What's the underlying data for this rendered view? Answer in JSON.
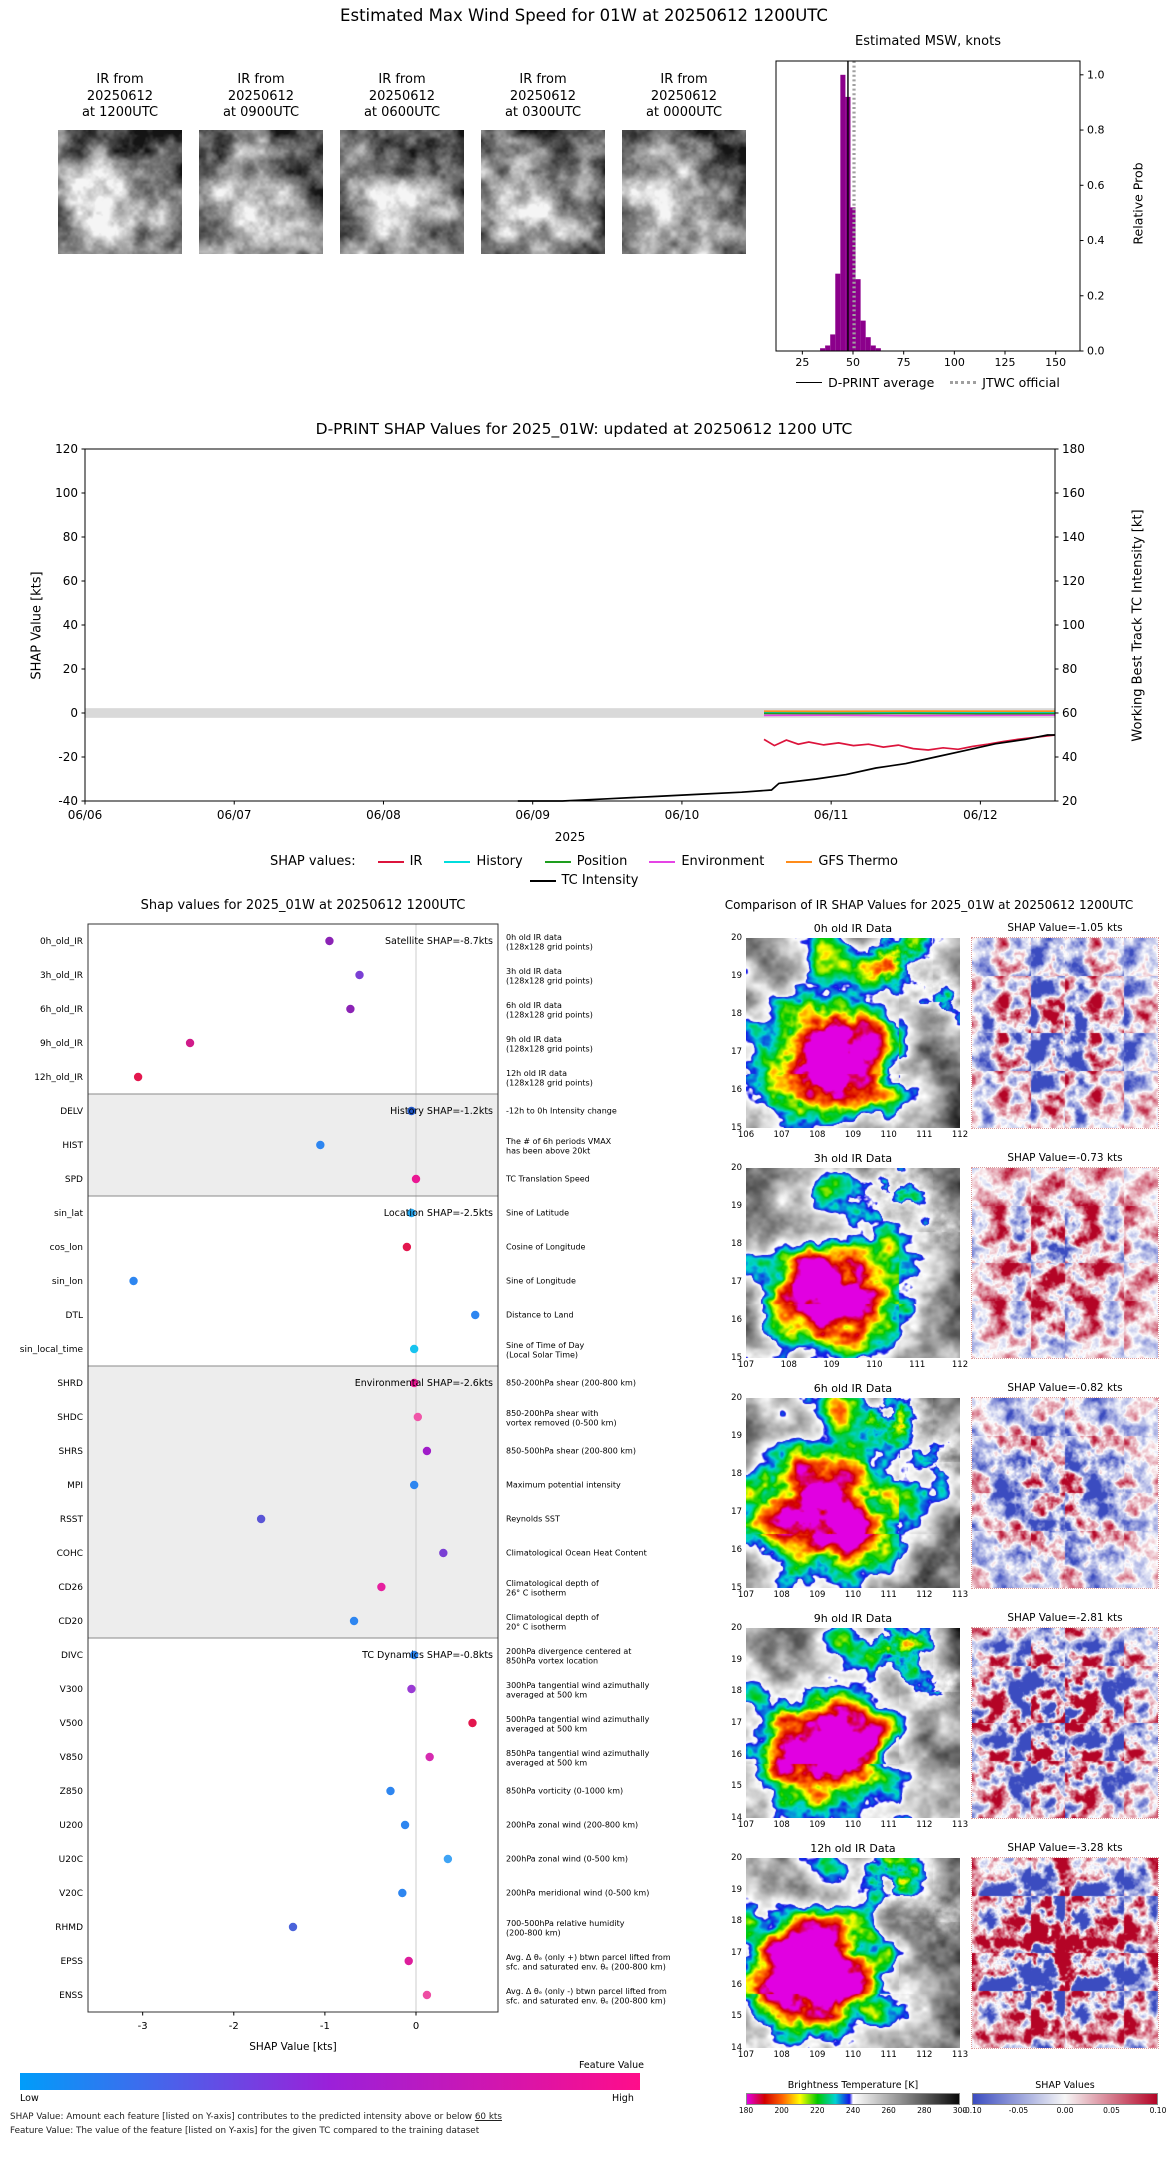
{
  "top": {
    "title": "Estimated Max Wind Speed for 01W at 20250612 1200UTC",
    "thumbnails": [
      {
        "lines": [
          "IR from",
          "20250612",
          "at 1200UTC"
        ]
      },
      {
        "lines": [
          "IR from",
          "20250612",
          "at 0900UTC"
        ]
      },
      {
        "lines": [
          "IR from",
          "20250612",
          "at 0600UTC"
        ]
      },
      {
        "lines": [
          "IR from",
          "20250612",
          "at 0300UTC"
        ]
      },
      {
        "lines": [
          "IR from",
          "20250612",
          "at 0000UTC"
        ]
      }
    ]
  },
  "chart_data": [
    {
      "id": "msw_histogram",
      "type": "bar",
      "title": "Estimated MSW, knots",
      "ylabel": "Relative Prob",
      "xlim": [
        12,
        162
      ],
      "ylim": [
        0,
        1.05
      ],
      "xticks": [
        25,
        50,
        75,
        100,
        125,
        150
      ],
      "yticks": [
        0.0,
        0.2,
        0.4,
        0.6,
        0.8,
        1.0
      ],
      "bar_color": "#8b008b",
      "bin_width": 2.5,
      "bin_centers": [
        35,
        37.5,
        40,
        42.5,
        45,
        47.5,
        50,
        52.5,
        55,
        57.5,
        60,
        62.5
      ],
      "bin_heights": [
        0.01,
        0.02,
        0.06,
        0.28,
        1.0,
        0.92,
        0.52,
        0.26,
        0.11,
        0.05,
        0.02,
        0.01
      ],
      "dprint_average_knots": 47.5,
      "jtwc_official_knots": 50.5,
      "legend": [
        {
          "label": "D-PRINT average",
          "style": "solid",
          "color": "#000000"
        },
        {
          "label": "JTWC official",
          "style": "dashed",
          "color": "#a0a0a0"
        }
      ]
    },
    {
      "id": "shap_timeseries",
      "type": "line",
      "title": "D-PRINT SHAP Values for 2025_01W: updated at 20250612 1200 UTC",
      "ylabel_left": "SHAP Value [kts]",
      "ylabel_right": "Working Best Track TC Intensity [kt]",
      "xlabel": "2025",
      "legend_prefix": "SHAP values:",
      "ylim_left": [
        -40,
        120
      ],
      "ylim_right": [
        20,
        180
      ],
      "yticks_left": [
        -40,
        -20,
        0,
        20,
        40,
        60,
        80,
        100,
        120
      ],
      "yticks_right": [
        20,
        40,
        60,
        80,
        100,
        120,
        140,
        160,
        180
      ],
      "xlim_days": [
        0,
        6.5
      ],
      "xticks": [
        {
          "day": 0,
          "label": "06/06"
        },
        {
          "day": 1,
          "label": "06/07"
        },
        {
          "day": 2,
          "label": "06/08"
        },
        {
          "day": 3,
          "label": "06/09"
        },
        {
          "day": 4,
          "label": "06/10"
        },
        {
          "day": 5,
          "label": "06/11"
        },
        {
          "day": 6,
          "label": "06/12"
        }
      ],
      "zero_band": {
        "color": "#d9d9d9",
        "halfwidth": 2.2
      },
      "series": [
        {
          "name": "IR",
          "color": "#dc143c",
          "axis": "left",
          "x": [
            4.55,
            4.62,
            4.7,
            4.78,
            4.85,
            4.95,
            5.05,
            5.15,
            5.25,
            5.35,
            5.45,
            5.55,
            5.65,
            5.75,
            5.85,
            5.95,
            6.05,
            6.15,
            6.25,
            6.35,
            6.45,
            6.5
          ],
          "y": [
            -12.0,
            -14.8,
            -12.3,
            -14.2,
            -13.2,
            -14.5,
            -13.6,
            -14.8,
            -14.2,
            -15.5,
            -14.6,
            -16.2,
            -16.8,
            -15.8,
            -16.5,
            -15.2,
            -14.2,
            -13.0,
            -12.0,
            -11.2,
            -10.4,
            -10.0
          ]
        },
        {
          "name": "History",
          "color": "#00dddd",
          "axis": "left",
          "x": [
            4.55,
            5.0,
            5.5,
            6.0,
            6.5
          ],
          "y": [
            0.3,
            0.2,
            0.3,
            0.25,
            0.3
          ]
        },
        {
          "name": "Position",
          "color": "#1e9e1e",
          "axis": "left",
          "x": [
            4.55,
            5.0,
            5.5,
            6.0,
            6.5
          ],
          "y": [
            -0.2,
            -0.25,
            -0.2,
            -0.3,
            -0.25
          ]
        },
        {
          "name": "Environment",
          "color": "#e544e5",
          "axis": "left",
          "x": [
            4.55,
            5.0,
            5.5,
            6.0,
            6.5
          ],
          "y": [
            -1.1,
            -1.0,
            -1.2,
            -1.1,
            -1.0
          ]
        },
        {
          "name": "GFS Thermo",
          "color": "#ff8c1a",
          "axis": "left",
          "x": [
            4.55,
            5.0,
            5.5,
            6.0,
            6.5
          ],
          "y": [
            0.8,
            0.75,
            0.85,
            0.8,
            0.8
          ]
        },
        {
          "name": "TC Intensity",
          "color": "#000000",
          "axis": "right",
          "x": [
            2.9,
            3.2,
            3.5,
            3.8,
            4.1,
            4.4,
            4.6,
            4.65,
            4.9,
            5.1,
            5.3,
            5.5,
            5.7,
            5.9,
            6.1,
            6.3,
            6.45,
            6.5
          ],
          "y": [
            20,
            20,
            21,
            22,
            23,
            24,
            25,
            28,
            30,
            32,
            35,
            37,
            40,
            43,
            46,
            48,
            50,
            50
          ]
        }
      ]
    },
    {
      "id": "shap_dotplot",
      "type": "scatter",
      "title": "Shap values for 2025_01W at 20250612 1200UTC",
      "xlabel": "SHAP Value [kts]",
      "xlim": [
        -3.6,
        0.9
      ],
      "xticks": [
        -3,
        -2,
        -1,
        0
      ],
      "groups": [
        {
          "label": "Satellite SHAP=-8.7kts",
          "start": 0,
          "end": 4
        },
        {
          "label": "History SHAP=-1.2kts",
          "start": 5,
          "end": 7
        },
        {
          "label": "Location SHAP=-2.5kts",
          "start": 8,
          "end": 12
        },
        {
          "label": "Environmental SHAP=-2.6kts",
          "start": 13,
          "end": 20
        },
        {
          "label": "TC Dynamics SHAP=-0.8kts",
          "start": 21,
          "end": 31
        }
      ],
      "features": [
        {
          "name": "0h_old_IR",
          "value": -0.95,
          "color": "#8b23b5",
          "desc": [
            "0h old IR data",
            "(128x128 grid points)"
          ]
        },
        {
          "name": "3h_old_IR",
          "value": -0.62,
          "color": "#7a3fd4",
          "desc": [
            "3h old IR data",
            "(128x128 grid points)"
          ]
        },
        {
          "name": "6h_old_IR",
          "value": -0.72,
          "color": "#8b23b5",
          "desc": [
            "6h old IR data",
            "(128x128 grid points)"
          ]
        },
        {
          "name": "9h_old_IR",
          "value": -2.48,
          "color": "#d01b8a",
          "desc": [
            "9h old IR data",
            "(128x128 grid points)"
          ]
        },
        {
          "name": "12h_old_IR",
          "value": -3.05,
          "color": "#e3174e",
          "desc": [
            "12h old IR data",
            "(128x128 grid points)"
          ]
        },
        {
          "name": "DELV",
          "value": -0.05,
          "color": "#2057c7",
          "desc": [
            "-12h to 0h Intensity change"
          ]
        },
        {
          "name": "HIST",
          "value": -1.05,
          "color": "#2e86f0",
          "desc": [
            "The # of 6h periods VMAX",
            "has been above 20kt"
          ]
        },
        {
          "name": "SPD",
          "value": 0.0,
          "color": "#ea1893",
          "desc": [
            "TC Translation Speed"
          ]
        },
        {
          "name": "sin_lat",
          "value": -0.05,
          "color": "#28a9f2",
          "desc": [
            "Sine of Latitude"
          ]
        },
        {
          "name": "cos_lon",
          "value": -0.1,
          "color": "#e3174e",
          "desc": [
            "Cosine of Longitude"
          ]
        },
        {
          "name": "sin_lon",
          "value": -3.1,
          "color": "#2e86f0",
          "desc": [
            "Sine of Longitude"
          ]
        },
        {
          "name": "DTL",
          "value": 0.65,
          "color": "#2e86f0",
          "desc": [
            "Distance to Land"
          ]
        },
        {
          "name": "sin_local_time",
          "value": -0.02,
          "color": "#17c3ef",
          "desc": [
            "Sine of Time of Day",
            "(Local Solar Time)"
          ]
        },
        {
          "name": "SHRD",
          "value": -0.02,
          "color": "#ea1893",
          "desc": [
            "850-200hPa shear (200-800 km)"
          ]
        },
        {
          "name": "SHDC",
          "value": 0.02,
          "color": "#ef56a8",
          "desc": [
            "850-200hPa shear with",
            "vortex removed (0-500 km)"
          ]
        },
        {
          "name": "SHRS",
          "value": 0.12,
          "color": "#a01cc9",
          "desc": [
            "850-500hPa shear (200-800 km)"
          ]
        },
        {
          "name": "MPI",
          "value": -0.02,
          "color": "#2e86f0",
          "desc": [
            "Maximum potential intensity"
          ]
        },
        {
          "name": "RSST",
          "value": -1.7,
          "color": "#5a55d6",
          "desc": [
            "Reynolds SST"
          ]
        },
        {
          "name": "COHC",
          "value": 0.3,
          "color": "#7a3fd4",
          "desc": [
            "Climatological Ocean Heat Content"
          ]
        },
        {
          "name": "CD26",
          "value": -0.38,
          "color": "#e6219f",
          "desc": [
            "Climatological depth of",
            "26° C isotherm"
          ]
        },
        {
          "name": "CD20",
          "value": -0.68,
          "color": "#2e86f0",
          "desc": [
            "Climatological depth of",
            "20° C isotherm"
          ]
        },
        {
          "name": "DIVC",
          "value": -0.02,
          "color": "#2e86f0",
          "desc": [
            "200hPa divergence centered at",
            "850hPa vortex location"
          ]
        },
        {
          "name": "V300",
          "value": -0.05,
          "color": "#9a3bd4",
          "desc": [
            "300hPa tangential wind azimuthally",
            "averaged at 500 km"
          ]
        },
        {
          "name": "V500",
          "value": 0.62,
          "color": "#e3174e",
          "desc": [
            "500hPa tangential wind azimuthally",
            "averaged at 500 km"
          ]
        },
        {
          "name": "V850",
          "value": 0.15,
          "color": "#d62bb0",
          "desc": [
            "850hPa tangential wind azimuthally",
            "averaged at 500 km"
          ]
        },
        {
          "name": "Z850",
          "value": -0.28,
          "color": "#2e86f0",
          "desc": [
            "850hPa vorticity (0-1000 km)"
          ]
        },
        {
          "name": "U200",
          "value": -0.12,
          "color": "#2e86f0",
          "desc": [
            "200hPa zonal wind (200-800 km)"
          ]
        },
        {
          "name": "U20C",
          "value": 0.35,
          "color": "#3fa4f5",
          "desc": [
            "200hPa zonal wind (0-500 km)"
          ]
        },
        {
          "name": "V20C",
          "value": -0.15,
          "color": "#2e86f0",
          "desc": [
            "200hPa meridional wind (0-500 km)"
          ]
        },
        {
          "name": "RHMD",
          "value": -1.35,
          "color": "#4a63da",
          "desc": [
            "700-500hPa relative humidity",
            "(200-800 km)"
          ]
        },
        {
          "name": "EPSS",
          "value": -0.08,
          "color": "#dd1e9c",
          "desc": [
            "Avg. Δ θₑ (only +) btwn parcel lifted from",
            "sfc. and saturated env. θₑ (200-800 km)"
          ]
        },
        {
          "name": "ENSS",
          "value": 0.12,
          "color": "#ee4da3",
          "desc": [
            "Avg. Δ θₑ (only -) btwn parcel lifted from",
            "sfc. and saturated env. θₑ (200-800 km)"
          ]
        }
      ],
      "colorbar": {
        "label": "Feature Value",
        "low": "Low",
        "high": "High",
        "stops": [
          {
            "pos": 0,
            "color": "#009dfa"
          },
          {
            "pos": 0.5,
            "color": "#9b20d9"
          },
          {
            "pos": 1,
            "color": "#ff0d8a"
          }
        ]
      },
      "footnote1_prefix": "SHAP Value: Amount each feature [listed on Y-axis] contributes to the predicted intensity above or below ",
      "footnote1_underlined": "60 kts",
      "footnote2": "Feature Value: The value of the feature [listed on Y-axis] for the given TC compared to the training dataset"
    },
    {
      "id": "ir_shap_comparison",
      "type": "heatmap",
      "title": "Comparison of IR SHAP Values for 2025_01W at 20250612 1200UTC",
      "rows": [
        {
          "ir_title": "0h old IR Data",
          "shap_label": "SHAP Value=-1.05 kts",
          "lon_ticks": [
            106,
            107,
            108,
            109,
            110,
            111,
            112
          ],
          "lat_ticks": [
            15,
            16,
            17,
            18,
            19,
            20
          ]
        },
        {
          "ir_title": "3h old IR Data",
          "shap_label": "SHAP Value=-0.73 kts",
          "lon_ticks": [
            107,
            108,
            109,
            110,
            111,
            112
          ],
          "lat_ticks": [
            15,
            16,
            17,
            18,
            19,
            20
          ]
        },
        {
          "ir_title": "6h old IR Data",
          "shap_label": "SHAP Value=-0.82 kts",
          "lon_ticks": [
            107,
            108,
            109,
            110,
            111,
            112,
            113
          ],
          "lat_ticks": [
            15,
            16,
            17,
            18,
            19,
            20
          ]
        },
        {
          "ir_title": "9h old IR Data",
          "shap_label": "SHAP Value=-2.81 kts",
          "lon_ticks": [
            107,
            108,
            109,
            110,
            111,
            112,
            113
          ],
          "lat_ticks": [
            14,
            15,
            16,
            17,
            18,
            19,
            20
          ]
        },
        {
          "ir_title": "12h old IR Data",
          "shap_label": "SHAP Value=-3.28 kts",
          "lon_ticks": [
            107,
            108,
            109,
            110,
            111,
            112,
            113
          ],
          "lat_ticks": [
            14,
            15,
            16,
            17,
            18,
            19,
            20
          ]
        }
      ],
      "bt_colorbar": {
        "label": "Brightness Temperature [K]",
        "ticks": [
          180,
          200,
          220,
          240,
          260,
          280,
          300
        ],
        "stops": [
          {
            "pos": 0.0,
            "color": "#e100e1"
          },
          {
            "pos": 0.083,
            "color": "#d20000"
          },
          {
            "pos": 0.167,
            "color": "#ff6400"
          },
          {
            "pos": 0.25,
            "color": "#ffff00"
          },
          {
            "pos": 0.333,
            "color": "#00c800"
          },
          {
            "pos": 0.417,
            "color": "#00d2d2"
          },
          {
            "pos": 0.483,
            "color": "#1414e6"
          },
          {
            "pos": 0.5,
            "color": "#ffffff"
          },
          {
            "pos": 1.0,
            "color": "#0a0a0a"
          }
        ]
      },
      "shap_colorbar": {
        "label": "SHAP Values",
        "ticks": [
          "-0.10",
          "-0.05",
          "0.00",
          "0.05",
          "0.10"
        ],
        "stops": [
          {
            "pos": 0,
            "color": "#3b4cc0"
          },
          {
            "pos": 0.5,
            "color": "#f7f7f7"
          },
          {
            "pos": 1,
            "color": "#b40426"
          }
        ]
      }
    }
  ]
}
